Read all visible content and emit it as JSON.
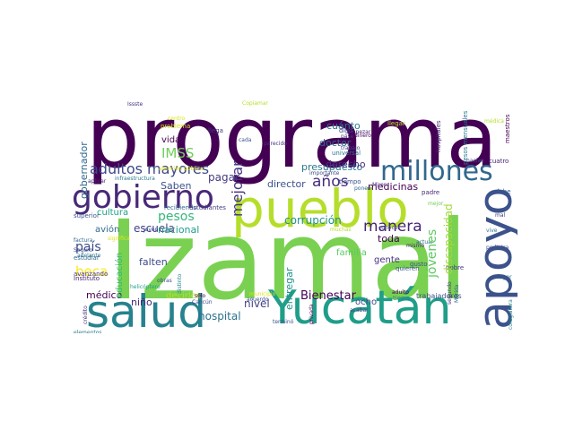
{
  "wordcloud": {
    "palette": "viridis",
    "words": [
      {
        "text": "programa",
        "color": "#440154"
      },
      {
        "text": "Izamal",
        "color": "#7ad151"
      },
      {
        "text": "pueblo",
        "color": "#b5de2b"
      },
      {
        "text": "Yucatán",
        "color": "#1f9e89"
      },
      {
        "text": "salud",
        "color": "#26828e"
      },
      {
        "text": "apoyo",
        "color": "#3b528b"
      },
      {
        "text": "gobierno",
        "color": "#482878"
      },
      {
        "text": "millones",
        "color": "#31688e"
      },
      {
        "text": "adultos mayores",
        "color": "#3e4a89"
      },
      {
        "text": "pesos",
        "color": "#35b779"
      },
      {
        "text": "IMSS",
        "color": "#6ece58"
      },
      {
        "text": "años",
        "color": "#472d7b"
      },
      {
        "text": "jóvenes",
        "color": "#5ec962"
      },
      {
        "text": "manera",
        "color": "#482475"
      },
      {
        "text": "presupuesto",
        "color": "#2a788e"
      },
      {
        "text": "mejorar",
        "color": "#453781"
      },
      {
        "text": "beca",
        "color": "#fde725"
      },
      {
        "text": "país",
        "color": "#3e4989"
      },
      {
        "text": "corrupción",
        "color": "#21918c"
      },
      {
        "text": "Bienestar",
        "color": "#440154"
      },
      {
        "text": "hospital",
        "color": "#2c728e"
      },
      {
        "text": "escuela",
        "color": "#414487"
      },
      {
        "text": "discapacidad",
        "color": "#a0da39"
      },
      {
        "text": "gobernador",
        "color": "#31688e"
      },
      {
        "text": "cuánto",
        "color": "#2a788e"
      },
      {
        "text": "doctor",
        "color": "#31688e"
      },
      {
        "text": "derecho",
        "color": "#46327e"
      },
      {
        "text": "medicinas",
        "color": "#440154"
      },
      {
        "text": "director",
        "color": "#3b528b"
      },
      {
        "text": "toda",
        "color": "#440154"
      },
      {
        "text": "gente",
        "color": "#46327e"
      },
      {
        "text": "familia",
        "color": "#5ec962"
      },
      {
        "text": "entregar",
        "color": "#21918c"
      },
      {
        "text": "nivel",
        "color": "#433e85"
      },
      {
        "text": "médico",
        "color": "#440154"
      },
      {
        "text": "niño",
        "color": "#482878"
      },
      {
        "text": "falten",
        "color": "#3e4a89"
      },
      {
        "text": "avión",
        "color": "#31688e"
      },
      {
        "text": "nacional",
        "color": "#1f9e89"
      },
      {
        "text": "Saben",
        "color": "#3b528b"
      },
      {
        "text": "pagar",
        "color": "#443983"
      },
      {
        "text": "vida",
        "color": "#440154"
      },
      {
        "text": "cultura",
        "color": "#1fa187"
      },
      {
        "text": "educación",
        "color": "#35b779"
      },
      {
        "text": "decirles",
        "color": "#b5de2b"
      },
      {
        "text": "ocho",
        "color": "#3e4a89"
      },
      {
        "text": "trabajadores",
        "color": "#3b528b"
      },
      {
        "text": "tierra",
        "color": "#25858e"
      },
      {
        "text": "pesos mensuales",
        "color": "#2a788e"
      },
      {
        "text": "hospitales",
        "color": "#482878"
      },
      {
        "text": "Mérida",
        "color": "#31688e"
      },
      {
        "text": "maestros",
        "color": "#440154"
      },
      {
        "text": "Issste",
        "color": "#472d7b"
      },
      {
        "text": "Copiamar",
        "color": "#b5de2b"
      },
      {
        "text": "llega",
        "color": "#443983"
      },
      {
        "text": "problema",
        "color": "#d8e219"
      },
      {
        "text": "centro",
        "color": "#dce319"
      },
      {
        "text": "cada",
        "color": "#3b528b"
      },
      {
        "text": "parecido",
        "color": "#46327e"
      },
      {
        "text": "digo",
        "color": "#443983"
      },
      {
        "text": "universal",
        "color": "#2c728e"
      },
      {
        "text": "trabajo",
        "color": "#3e4a89"
      },
      {
        "text": "tiempo",
        "color": "#3b528b"
      },
      {
        "text": "dinero",
        "color": "#440154"
      },
      {
        "text": "pase",
        "color": "#46327e"
      },
      {
        "text": "llegar",
        "color": "#c2df23"
      },
      {
        "text": "hacían",
        "color": "#3e4989"
      },
      {
        "text": "cuatro",
        "color": "#482475"
      },
      {
        "text": "debe",
        "color": "#31688e"
      },
      {
        "text": "padre",
        "color": "#482878"
      },
      {
        "text": "mejor",
        "color": "#6ece58"
      },
      {
        "text": "mal",
        "color": "#453781"
      },
      {
        "text": "quieren",
        "color": "#3b528b"
      },
      {
        "text": "pobre",
        "color": "#443983"
      },
      {
        "text": "gusto",
        "color": "#3b528b"
      },
      {
        "text": "actuar",
        "color": "#31688e"
      },
      {
        "text": "vive",
        "color": "#2a788e"
      },
      {
        "text": "pediatra",
        "color": "#3e4a89"
      },
      {
        "text": "Mayor",
        "color": "#2c728e"
      },
      {
        "text": "adulto",
        "color": "#440154"
      },
      {
        "text": "mismo",
        "color": "#482878"
      },
      {
        "text": "segundo",
        "color": "#46327e"
      },
      {
        "text": "acabar",
        "color": "#433e85"
      },
      {
        "text": "privada",
        "color": "#440154"
      },
      {
        "text": "municipio",
        "color": "#dce319"
      },
      {
        "text": "terminó",
        "color": "#3b528b"
      },
      {
        "text": "Cancún",
        "color": "#3e4989"
      },
      {
        "text": "helicóptero",
        "color": "#1f9e89"
      },
      {
        "text": "obras",
        "color": "#3b528b"
      },
      {
        "text": "sólo",
        "color": "#440154"
      },
      {
        "text": "distinto",
        "color": "#25858e"
      },
      {
        "text": "significa",
        "color": "#dce319"
      },
      {
        "text": "joven",
        "color": "#3e4989"
      },
      {
        "text": "Instituto",
        "color": "#482475"
      },
      {
        "text": "Seguro",
        "color": "#3e4a89"
      },
      {
        "text": "estudiar",
        "color": "#31688e"
      },
      {
        "text": "avanzando",
        "color": "#443983"
      },
      {
        "text": "factura",
        "color": "#31688e"
      },
      {
        "text": "superior",
        "color": "#3b528b"
      },
      {
        "text": "adelante",
        "color": "#2c728e"
      },
      {
        "text": "elementos",
        "color": "#2a788e"
      },
      {
        "text": "crédito",
        "color": "#46327e"
      },
      {
        "text": "aplicar",
        "color": "#472d7b"
      },
      {
        "text": "recibiendo",
        "color": "#31688e"
      },
      {
        "text": "estudiantes",
        "color": "#433e85"
      },
      {
        "text": "infraestructura",
        "color": "#2a788e"
      },
      {
        "text": "atención pública",
        "color": "#dce319"
      },
      {
        "text": "acuerdo",
        "color": "#3b528b"
      },
      {
        "text": "muchas",
        "color": "#b5de2b"
      },
      {
        "text": "conocer",
        "color": "#3e4989"
      },
      {
        "text": "importante",
        "color": "#3e4a89"
      },
      {
        "text": "Miren",
        "color": "#482878"
      },
      {
        "text": "ponen",
        "color": "#31688e"
      },
      {
        "text": "empezar",
        "color": "#482878"
      },
      {
        "text": "colegiatura",
        "color": "#26828e"
      },
      {
        "text": "médica",
        "color": "#b5de2b"
      }
    ]
  }
}
